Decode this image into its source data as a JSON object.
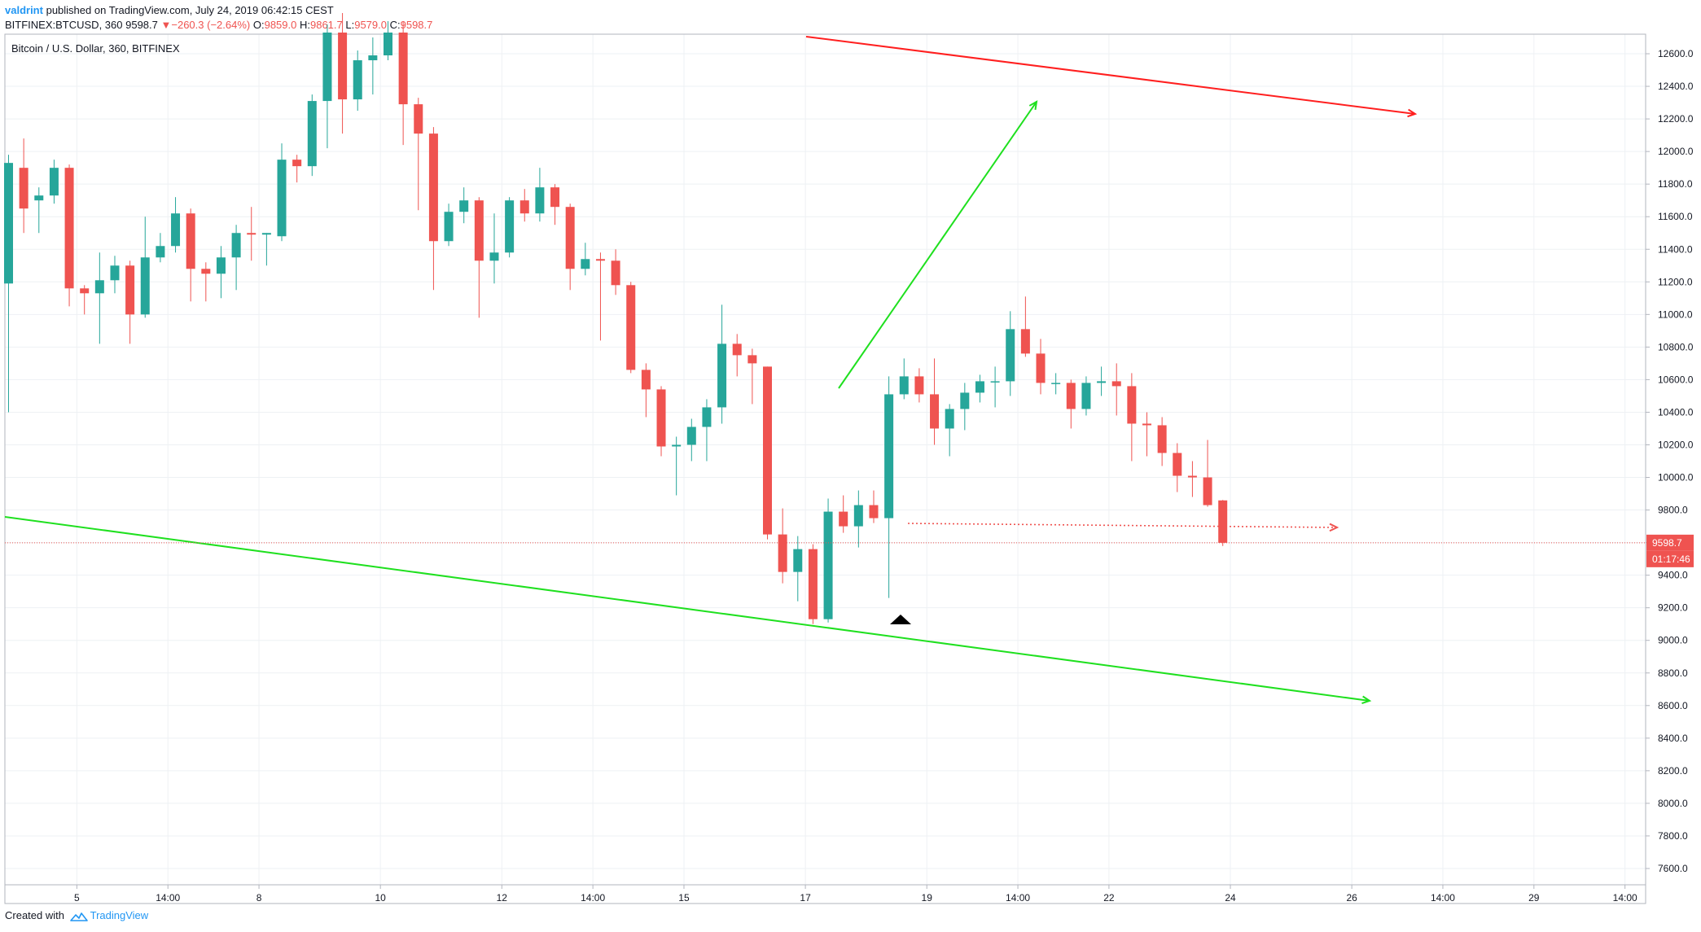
{
  "header": {
    "username": "valdrint",
    "published_text": "published on TradingView.com, July 24, 2019 06:42:15 CEST",
    "symbol": "BITFINEX:BTCUSD, 360",
    "last": "9598.7",
    "change_arrow": "▼",
    "change": "−260.3 (−2.64%)",
    "o_label": "O:",
    "o": "9859.0",
    "h_label": "H:",
    "h": "9861.7",
    "l_label": "L:",
    "l": "9579.0",
    "c_label": "C:",
    "c": "9598.7"
  },
  "footer": {
    "created_with": "Created with",
    "brand": "TradingView"
  },
  "colors": {
    "up": "#26a69a",
    "down": "#ef5350",
    "grid": "#eef1f4",
    "axis": "#b2b5be",
    "trend_red": "#ff1f1f",
    "trend_green": "#1fe01f",
    "price_line": "#ef5350"
  },
  "chart_data": {
    "type": "candlestick",
    "title": "Bitcoin / U.S. Dollar, 360, BITFINEX",
    "ylim": [
      7500,
      12720
    ],
    "yticks": [
      7600,
      7800,
      8000,
      8200,
      8400,
      8600,
      8800,
      9000,
      9200,
      9400,
      9600,
      9800,
      10000,
      10200,
      10400,
      10600,
      10800,
      11000,
      11200,
      11400,
      11600,
      11800,
      12000,
      12200,
      12400,
      12600
    ],
    "x_tick_labels": [
      {
        "i": 4.5,
        "label": "5"
      },
      {
        "i": 10.5,
        "label": "14:00"
      },
      {
        "i": 16.5,
        "label": "8"
      },
      {
        "i": 24.5,
        "label": "10"
      },
      {
        "i": 32.5,
        "label": "12"
      },
      {
        "i": 38.5,
        "label": "14:00"
      },
      {
        "i": 44.5,
        "label": "15"
      },
      {
        "i": 52.5,
        "label": "17"
      },
      {
        "i": 60.5,
        "label": "19"
      },
      {
        "i": 66.5,
        "label": "14:00"
      },
      {
        "i": 72.5,
        "label": "22"
      },
      {
        "i": 80.5,
        "label": "24"
      },
      {
        "i": 88.5,
        "label": "26"
      },
      {
        "i": 94.5,
        "label": "14:00"
      },
      {
        "i": 100.5,
        "label": "29"
      },
      {
        "i": 106.5,
        "label": "14:00"
      }
    ],
    "last_price": 9598.7,
    "last_price_label": "9598.7",
    "countdown": "01:17:46",
    "candles": [
      [
        0,
        11190,
        11930,
        10400,
        11980
      ],
      [
        1,
        11900,
        11650,
        11500,
        12080
      ],
      [
        2,
        11700,
        11730,
        11500,
        11780
      ],
      [
        3,
        11730,
        11900,
        11680,
        11950
      ],
      [
        4,
        11900,
        11160,
        11050,
        11920
      ],
      [
        5,
        11160,
        11130,
        11000,
        11180
      ],
      [
        6,
        11130,
        11210,
        10820,
        11380
      ],
      [
        7,
        11210,
        11300,
        11130,
        11360
      ],
      [
        8,
        11300,
        11000,
        10820,
        11330
      ],
      [
        9,
        11000,
        11350,
        10980,
        11600
      ],
      [
        10,
        11350,
        11420,
        11320,
        11500
      ],
      [
        11,
        11420,
        11620,
        11380,
        11720
      ],
      [
        12,
        11620,
        11280,
        11080,
        11650
      ],
      [
        13,
        11280,
        11250,
        11080,
        11320
      ],
      [
        14,
        11250,
        11350,
        11100,
        11420
      ],
      [
        15,
        11350,
        11500,
        11150,
        11550
      ],
      [
        16,
        11500,
        11490,
        11330,
        11660
      ],
      [
        17,
        11490,
        11500,
        11300,
        11500
      ],
      [
        18,
        11480,
        11950,
        11450,
        12050
      ],
      [
        19,
        11950,
        11910,
        11810,
        11980
      ],
      [
        20,
        11910,
        12310,
        11850,
        12350
      ],
      [
        21,
        12310,
        12730,
        12020,
        12780
      ],
      [
        22,
        12730,
        12320,
        12110,
        12850
      ],
      [
        23,
        12320,
        12560,
        12250,
        12620
      ],
      [
        24,
        12560,
        12590,
        12350,
        12700
      ],
      [
        25,
        12590,
        12730,
        12560,
        12800
      ],
      [
        26,
        12730,
        12290,
        12040,
        12800
      ],
      [
        27,
        12290,
        12110,
        11640,
        12330
      ],
      [
        28,
        12110,
        11450,
        11150,
        12150
      ],
      [
        29,
        11450,
        11630,
        11420,
        11680
      ],
      [
        30,
        11630,
        11700,
        11560,
        11780
      ],
      [
        31,
        11700,
        11330,
        10980,
        11720
      ],
      [
        32,
        11330,
        11380,
        11190,
        11620
      ],
      [
        33,
        11380,
        11700,
        11350,
        11720
      ],
      [
        34,
        11700,
        11620,
        11570,
        11770
      ],
      [
        35,
        11620,
        11780,
        11570,
        11900
      ],
      [
        36,
        11780,
        11660,
        11550,
        11800
      ],
      [
        37,
        11660,
        11280,
        11150,
        11680
      ],
      [
        38,
        11280,
        11340,
        11240,
        11440
      ],
      [
        39,
        11340,
        11330,
        10840,
        11380
      ],
      [
        40,
        11330,
        11180,
        11120,
        11400
      ],
      [
        41,
        11180,
        10660,
        10640,
        11200
      ],
      [
        42,
        10660,
        10540,
        10370,
        10700
      ],
      [
        43,
        10540,
        10190,
        10130,
        10560
      ],
      [
        44,
        10190,
        10200,
        9890,
        10250
      ],
      [
        45,
        10200,
        10310,
        10100,
        10360
      ],
      [
        46,
        10310,
        10430,
        10100,
        10480
      ],
      [
        47,
        10430,
        10820,
        10330,
        11060
      ],
      [
        48,
        10820,
        10750,
        10620,
        10880
      ],
      [
        49,
        10750,
        10700,
        10450,
        10790
      ],
      [
        50,
        10680,
        9650,
        9620,
        10680
      ],
      [
        51,
        9650,
        9420,
        9350,
        9810
      ],
      [
        52,
        9420,
        9560,
        9240,
        9640
      ],
      [
        53,
        9560,
        9130,
        9100,
        9590
      ],
      [
        54,
        9130,
        9790,
        9110,
        9870
      ],
      [
        55,
        9790,
        9700,
        9660,
        9890
      ],
      [
        56,
        9700,
        9830,
        9570,
        9920
      ],
      [
        57,
        9830,
        9750,
        9720,
        9920
      ],
      [
        58,
        9750,
        10510,
        9260,
        10620
      ],
      [
        59,
        10510,
        10620,
        10480,
        10730
      ],
      [
        60,
        10620,
        10510,
        10460,
        10670
      ],
      [
        61,
        10510,
        10300,
        10200,
        10730
      ],
      [
        62,
        10300,
        10420,
        10130,
        10450
      ],
      [
        63,
        10420,
        10520,
        10290,
        10580
      ],
      [
        64,
        10520,
        10590,
        10460,
        10630
      ],
      [
        65,
        10590,
        10590,
        10430,
        10680
      ],
      [
        66,
        10590,
        10910,
        10500,
        11020
      ],
      [
        67,
        10910,
        10760,
        10740,
        11110
      ],
      [
        68,
        10760,
        10580,
        10510,
        10850
      ],
      [
        69,
        10580,
        10580,
        10510,
        10640
      ],
      [
        70,
        10580,
        10420,
        10300,
        10600
      ],
      [
        71,
        10420,
        10580,
        10380,
        10620
      ],
      [
        72,
        10580,
        10590,
        10500,
        10680
      ],
      [
        73,
        10590,
        10560,
        10380,
        10700
      ],
      [
        74,
        10560,
        10330,
        10100,
        10640
      ],
      [
        75,
        10330,
        10320,
        10130,
        10400
      ],
      [
        76,
        10320,
        10150,
        10070,
        10370
      ],
      [
        77,
        10150,
        10010,
        9910,
        10210
      ],
      [
        78,
        10010,
        10000,
        9880,
        10100
      ],
      [
        79,
        10000,
        9830,
        9820,
        10230
      ],
      [
        80,
        9859,
        9598.7,
        9579,
        9861.7
      ]
    ]
  }
}
